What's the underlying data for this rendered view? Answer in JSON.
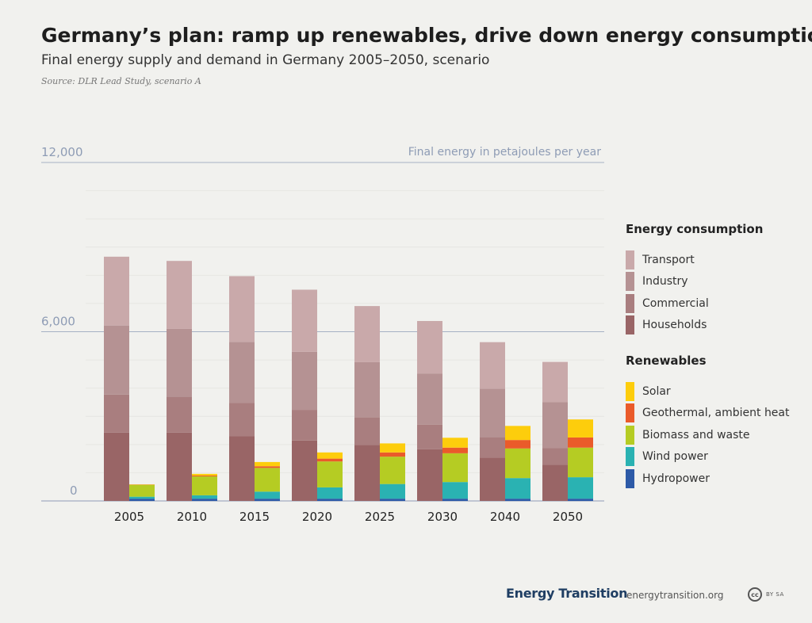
{
  "title": "Germany’s plan: ramp up renewables, drive down energy consumption",
  "subtitle": "Final energy supply and demand in Germany 2005–2050, scenario",
  "source": "Source: DLR Lead Study, scenario A",
  "footer": {
    "brand": "Energy Transition",
    "url": "energytransition.org",
    "license_badge": "cc",
    "license_text": "BY SA"
  },
  "chart_data": {
    "type": "bar",
    "ylabel": "Final energy in petajoules per year",
    "ylim": [
      0,
      12000
    ],
    "yticks": [
      {
        "value": 0,
        "label": "0"
      },
      {
        "value": 6000,
        "label": "6,000"
      },
      {
        "value": 12000,
        "label": "12,000"
      }
    ],
    "categories": [
      "2005",
      "2010",
      "2015",
      "2020",
      "2025",
      "2030",
      "2040",
      "2050"
    ],
    "groups": [
      {
        "name": "Energy consumption",
        "series": [
          {
            "name": "Households",
            "color": "#996566",
            "values": [
              2420,
              2420,
              2290,
              2140,
              1980,
              1830,
              1530,
              1280
            ]
          },
          {
            "name": "Commercial",
            "color": "#a97e7f",
            "values": [
              1350,
              1280,
              1180,
              1090,
              990,
              870,
              730,
              600
            ]
          },
          {
            "name": "Industry",
            "color": "#b59293",
            "values": [
              2450,
              2400,
              2170,
              2060,
              1950,
              1820,
              1720,
              1620
            ]
          },
          {
            "name": "Transport",
            "color": "#c9a9aa",
            "values": [
              2440,
              2410,
              2330,
              2200,
              1990,
              1860,
              1650,
              1430
            ]
          }
        ]
      },
      {
        "name": "Renewables",
        "series": [
          {
            "name": "Hydropower",
            "color": "#2d5aa7",
            "values": [
              80,
              80,
              80,
              80,
              80,
              80,
              80,
              80
            ]
          },
          {
            "name": "Wind power",
            "color": "#2ab2b2",
            "values": [
              70,
              120,
              250,
              400,
              520,
              590,
              730,
              760
            ]
          },
          {
            "name": "Biomass and waste",
            "color": "#b5cc23",
            "values": [
              420,
              670,
              840,
              920,
              970,
              1020,
              1050,
              1050
            ]
          },
          {
            "name": "Geothermal, ambient heat",
            "color": "#ea5b2a",
            "values": [
              10,
              30,
              60,
              100,
              150,
              200,
              300,
              360
            ]
          },
          {
            "name": "Solar",
            "color": "#fdcd0c",
            "values": [
              10,
              60,
              150,
              220,
              320,
              350,
              500,
              640
            ]
          }
        ]
      }
    ],
    "legend_order": {
      "Energy consumption": [
        "Transport",
        "Industry",
        "Commercial",
        "Households"
      ],
      "Renewables": [
        "Solar",
        "Geothermal, ambient heat",
        "Biomass and waste",
        "Wind power",
        "Hydropower"
      ]
    },
    "legend_position": "right",
    "grid": true
  }
}
